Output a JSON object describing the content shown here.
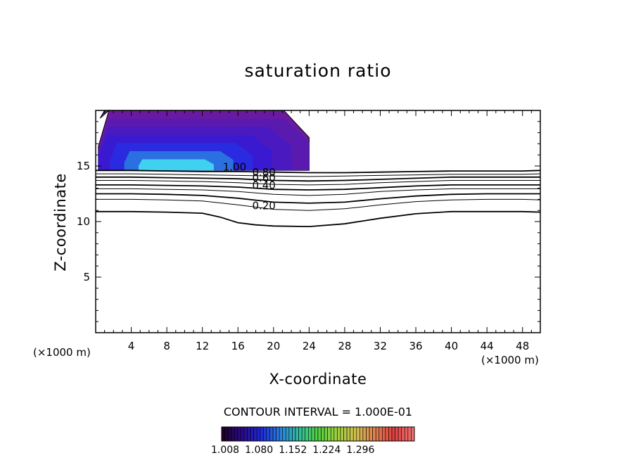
{
  "chart_data": {
    "type": "contour",
    "title": "saturation ratio",
    "xlabel": "X-coordinate",
    "ylabel": "Z-coordinate",
    "x_unit": "(×1000 m)",
    "xlim": [
      0,
      50
    ],
    "ylim": [
      0,
      20
    ],
    "x_ticks": [
      4,
      8,
      12,
      16,
      20,
      24,
      28,
      32,
      36,
      40,
      44,
      48
    ],
    "y_ticks": [
      5,
      10,
      15
    ],
    "contour_interval_label": "CONTOUR INTERVAL = 1.000E-01",
    "contour_labels": [
      "1.00",
      "0.80",
      "0.60",
      "0.40",
      "0.20"
    ],
    "contours": [
      {
        "level": 1.0,
        "x": [
          0,
          4,
          8,
          12,
          16,
          20,
          24,
          28,
          32,
          36,
          40,
          44,
          48,
          50
        ],
        "z": [
          14.6,
          14.6,
          14.55,
          14.5,
          14.5,
          14.45,
          14.4,
          14.4,
          14.45,
          14.5,
          14.55,
          14.55,
          14.55,
          14.6
        ]
      },
      {
        "level": 0.9,
        "x": [
          0,
          4,
          8,
          12,
          16,
          20,
          24,
          28,
          32,
          36,
          40,
          44,
          48,
          50
        ],
        "z": [
          14.3,
          14.3,
          14.25,
          14.2,
          14.15,
          14.1,
          14.05,
          14.1,
          14.15,
          14.2,
          14.25,
          14.25,
          14.25,
          14.3
        ]
      },
      {
        "level": 0.8,
        "x": [
          0,
          4,
          8,
          12,
          16,
          20,
          24,
          28,
          32,
          36,
          40,
          44,
          48,
          50
        ],
        "z": [
          14.0,
          14.0,
          13.95,
          13.9,
          13.85,
          13.7,
          13.65,
          13.7,
          13.8,
          13.9,
          14.0,
          14.0,
          14.0,
          14.0
        ]
      },
      {
        "level": 0.7,
        "x": [
          0,
          4,
          8,
          12,
          16,
          20,
          24,
          28,
          32,
          36,
          40,
          44,
          48,
          50
        ],
        "z": [
          13.7,
          13.7,
          13.65,
          13.6,
          13.5,
          13.35,
          13.3,
          13.35,
          13.5,
          13.6,
          13.7,
          13.7,
          13.7,
          13.7
        ]
      },
      {
        "level": 0.6,
        "x": [
          0,
          4,
          8,
          12,
          16,
          20,
          24,
          28,
          32,
          36,
          40,
          44,
          48,
          50
        ],
        "z": [
          13.3,
          13.3,
          13.25,
          13.2,
          13.1,
          12.9,
          12.85,
          12.9,
          13.05,
          13.2,
          13.3,
          13.3,
          13.3,
          13.3
        ]
      },
      {
        "level": 0.5,
        "x": [
          0,
          4,
          8,
          12,
          16,
          20,
          24,
          28,
          32,
          36,
          40,
          44,
          48,
          50
        ],
        "z": [
          12.95,
          12.95,
          12.9,
          12.85,
          12.7,
          12.45,
          12.35,
          12.45,
          12.7,
          12.85,
          12.95,
          12.95,
          12.95,
          12.95
        ]
      },
      {
        "level": 0.4,
        "x": [
          0,
          4,
          8,
          12,
          16,
          20,
          24,
          28,
          32,
          36,
          40,
          44,
          48,
          50
        ],
        "z": [
          12.5,
          12.5,
          12.45,
          12.35,
          12.1,
          11.75,
          11.65,
          11.75,
          12.05,
          12.3,
          12.45,
          12.5,
          12.5,
          12.5
        ]
      },
      {
        "level": 0.3,
        "x": [
          0,
          4,
          8,
          12,
          16,
          20,
          24,
          28,
          32,
          36,
          40,
          44,
          48,
          50
        ],
        "z": [
          12.0,
          12.0,
          11.95,
          11.85,
          11.5,
          11.1,
          11.0,
          11.15,
          11.5,
          11.8,
          11.95,
          12.0,
          12.0,
          11.95
        ]
      },
      {
        "level": 0.2,
        "x": [
          0,
          4,
          8,
          12,
          14,
          16,
          18,
          20,
          24,
          28,
          32,
          36,
          40,
          44,
          48,
          50
        ],
        "z": [
          10.9,
          10.9,
          10.85,
          10.75,
          10.4,
          9.9,
          9.7,
          9.6,
          9.55,
          9.8,
          10.3,
          10.7,
          10.9,
          10.9,
          10.9,
          10.85
        ]
      }
    ],
    "filled_region": {
      "x_range": [
        0,
        24
      ],
      "z_range": [
        14.6,
        20
      ],
      "min_value": 1.008,
      "max_value": 1.15
    },
    "colorbar": {
      "tick_labels": [
        "1.008",
        "1.080",
        "1.152",
        "1.224",
        "1.296"
      ],
      "colors": [
        "#20002a",
        "#2a0a8a",
        "#1e2ad0",
        "#2a80e0",
        "#30c0a0",
        "#50d040",
        "#a0d040",
        "#d0c050",
        "#e08050",
        "#e04040",
        "#f07070"
      ]
    },
    "filled_colors": [
      "#6a1aa0",
      "#5a1ab0",
      "#4a1ac0",
      "#3a1ad0",
      "#2a2ae0",
      "#2a70e0",
      "#40d0f0"
    ]
  }
}
